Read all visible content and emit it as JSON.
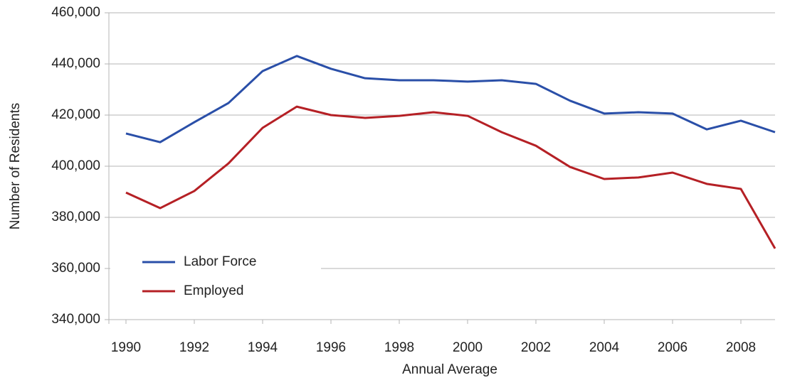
{
  "chart_data": {
    "type": "line",
    "x_label": "Annual Average",
    "y_label": "Number of Residents",
    "x": [
      1990,
      1991,
      1992,
      1993,
      1994,
      1995,
      1996,
      1997,
      1998,
      1999,
      2000,
      2001,
      2002,
      2003,
      2004,
      2005,
      2006,
      2007,
      2008,
      2009
    ],
    "series": [
      {
        "name": "Labor Force",
        "color": "#2a4fa8",
        "values": [
          412800,
          409400,
          417200,
          424700,
          437200,
          443100,
          438100,
          434400,
          433600,
          433600,
          433100,
          433600,
          432200,
          425600,
          420600,
          421100,
          420600,
          414400,
          417800,
          413300
        ]
      },
      {
        "name": "Employed",
        "color": "#b52025",
        "values": [
          389700,
          383600,
          390300,
          401100,
          415000,
          423300,
          420000,
          418900,
          419700,
          421100,
          419700,
          413300,
          408000,
          399700,
          395000,
          395600,
          397500,
          393100,
          391100,
          367800
        ]
      }
    ],
    "xlim": [
      1989.5,
      2009
    ],
    "xticks": [
      1990,
      1992,
      1994,
      1996,
      1998,
      2000,
      2002,
      2004,
      2006,
      2008
    ],
    "ylim": [
      340000,
      460000
    ],
    "yticks": [
      {
        "value": 340000,
        "label": "340,000"
      },
      {
        "value": 360000,
        "label": "360,000"
      },
      {
        "value": 380000,
        "label": "380,000"
      },
      {
        "value": 400000,
        "label": "400,000"
      },
      {
        "value": 420000,
        "label": "420,000"
      },
      {
        "value": 440000,
        "label": "440,000"
      },
      {
        "value": 460000,
        "label": "460,000"
      }
    ],
    "grid": true,
    "legend": "lower left"
  }
}
